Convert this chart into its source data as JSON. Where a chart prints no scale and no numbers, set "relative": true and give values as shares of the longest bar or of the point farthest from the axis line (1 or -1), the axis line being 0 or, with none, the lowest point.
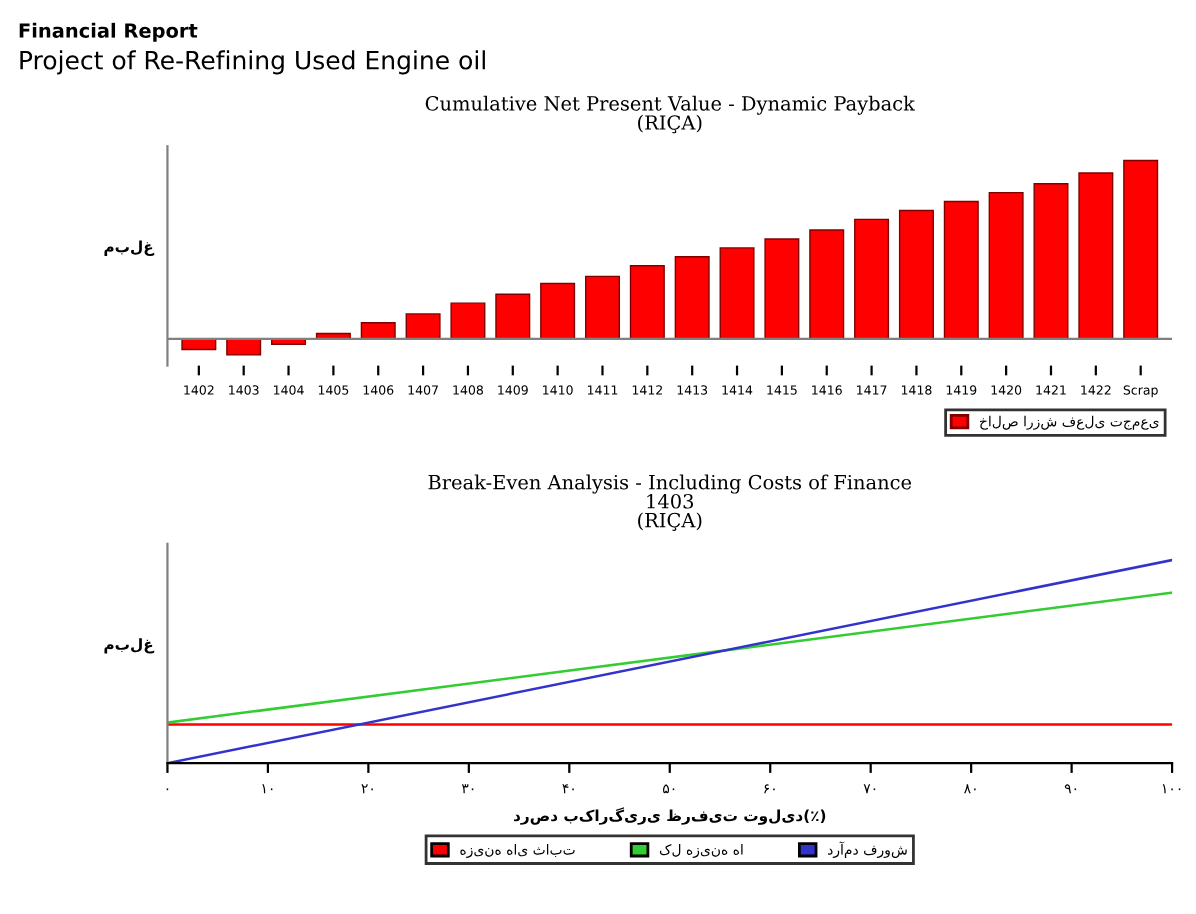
{
  "chart_data": [
    {
      "type": "bar",
      "title": "Cumulative Net Present Value - Dynamic Payback\n(RIÇA)",
      "ylabel": "مبلغ",
      "relative": true,
      "legend": "bottom right",
      "grid": false,
      "annotations": [
        "Financial Report",
        "Project of Re-Refining Used Engine oil"
      ],
      "categories": [
        "1402",
        "1403",
        "1404",
        "1405",
        "1406",
        "1407",
        "1408",
        "1409",
        "1410",
        "1411",
        "1412",
        "1413",
        "1414",
        "1415",
        "1416",
        "1417",
        "1418",
        "1419",
        "1420",
        "1421",
        "1422",
        "Scrap"
      ],
      "series": [
        {
          "name": "خالص ارزش فعلی تجمعی",
          "color": "#ff0000",
          "values": [
            -0.06,
            -0.09,
            -0.03,
            0.03,
            0.09,
            0.14,
            0.2,
            0.25,
            0.31,
            0.35,
            0.41,
            0.46,
            0.51,
            0.56,
            0.61,
            0.67,
            0.72,
            0.77,
            0.82,
            0.87,
            0.93,
            1
          ]
        }
      ]
    },
    {
      "type": "line",
      "title": "Break-Even Analysis - Including Costs of Finance\n1403\n(RIÇA)",
      "ylabel": "مبلغ",
      "xlabel": "درصد بکارگیری ظرفیت تولید(٪)",
      "relative": true,
      "legend": "bottom",
      "grid": false,
      "marker": "none",
      "line_style": "solid",
      "xlim": [
        0,
        100
      ],
      "x": [
        0,
        100
      ],
      "xticks": [
        {
          "value": 0,
          "label": "۰"
        },
        {
          "value": 10,
          "label": "۱۰"
        },
        {
          "value": 20,
          "label": "۲۰"
        },
        {
          "value": 30,
          "label": "۳۰"
        },
        {
          "value": 40,
          "label": "۴۰"
        },
        {
          "value": 50,
          "label": "۵۰"
        },
        {
          "value": 60,
          "label": "۶۰"
        },
        {
          "value": 70,
          "label": "۷۰"
        },
        {
          "value": 80,
          "label": "۸۰"
        },
        {
          "value": 90,
          "label": "۹۰"
        },
        {
          "value": 100,
          "label": "۱۰۰"
        }
      ],
      "series": [
        {
          "name": "هزینه های ثابت",
          "color": "#ff0000",
          "values": [
            0.19,
            0.19
          ]
        },
        {
          "name": "کل هزینه ها",
          "color": "#33cc33",
          "values": [
            0.2,
            0.84
          ]
        },
        {
          "name": "درآمد فروش",
          "color": "#3333cc",
          "values": [
            0,
            1
          ]
        }
      ]
    }
  ]
}
